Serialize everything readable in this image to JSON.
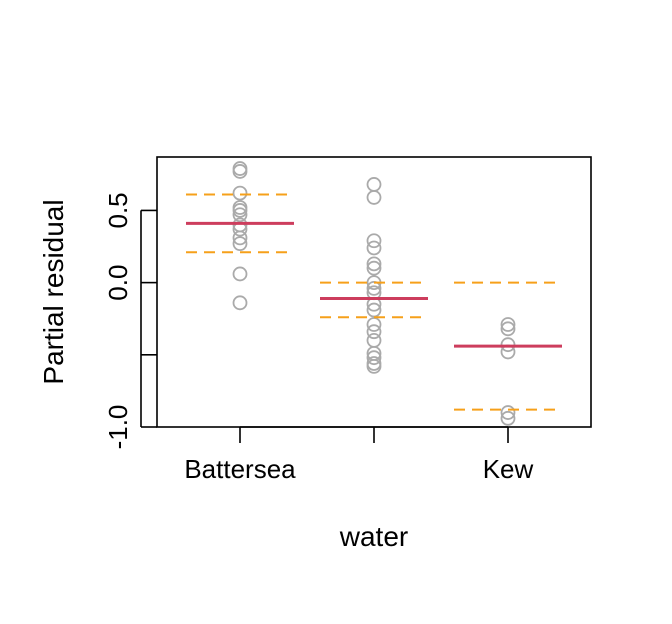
{
  "chart_data": {
    "type": "scatter",
    "title": "",
    "xlabel": "water",
    "ylabel": "Partial residual",
    "categories": [
      "Battersea",
      "",
      "Kew"
    ],
    "x_tick_labels": [
      "Battersea",
      "",
      "Kew"
    ],
    "y_ticks": [
      -1.0,
      -0.5,
      0.0,
      0.5
    ],
    "y_tick_labels": [
      "-1.0",
      "",
      "0.0",
      "0.5"
    ],
    "ylim": [
      -1.0,
      0.87
    ],
    "grid": false,
    "colors": {
      "points": "#aaaaaa",
      "fit": "#cd3d5d",
      "band": "#f6a01a",
      "axes": "#000000"
    },
    "groups": [
      {
        "category": "Battersea",
        "points": [
          0.79,
          0.77,
          0.62,
          0.52,
          0.5,
          0.47,
          0.4,
          0.37,
          0.31,
          0.27,
          0.06,
          -0.14
        ],
        "fit": 0.41,
        "lower": 0.21,
        "upper": 0.61
      },
      {
        "category": "",
        "points": [
          0.68,
          0.59,
          0.29,
          0.24,
          0.13,
          0.1,
          0.0,
          -0.04,
          -0.07,
          -0.15,
          -0.19,
          -0.29,
          -0.34,
          -0.4,
          -0.49,
          -0.52,
          -0.56,
          -0.58
        ],
        "fit": -0.11,
        "lower": -0.24,
        "upper": 0.0
      },
      {
        "category": "Kew",
        "points": [
          -0.29,
          -0.32,
          -0.43,
          -0.48,
          -0.9,
          -0.94
        ],
        "fit": -0.44,
        "lower": -0.88,
        "upper": 0.0
      }
    ]
  }
}
